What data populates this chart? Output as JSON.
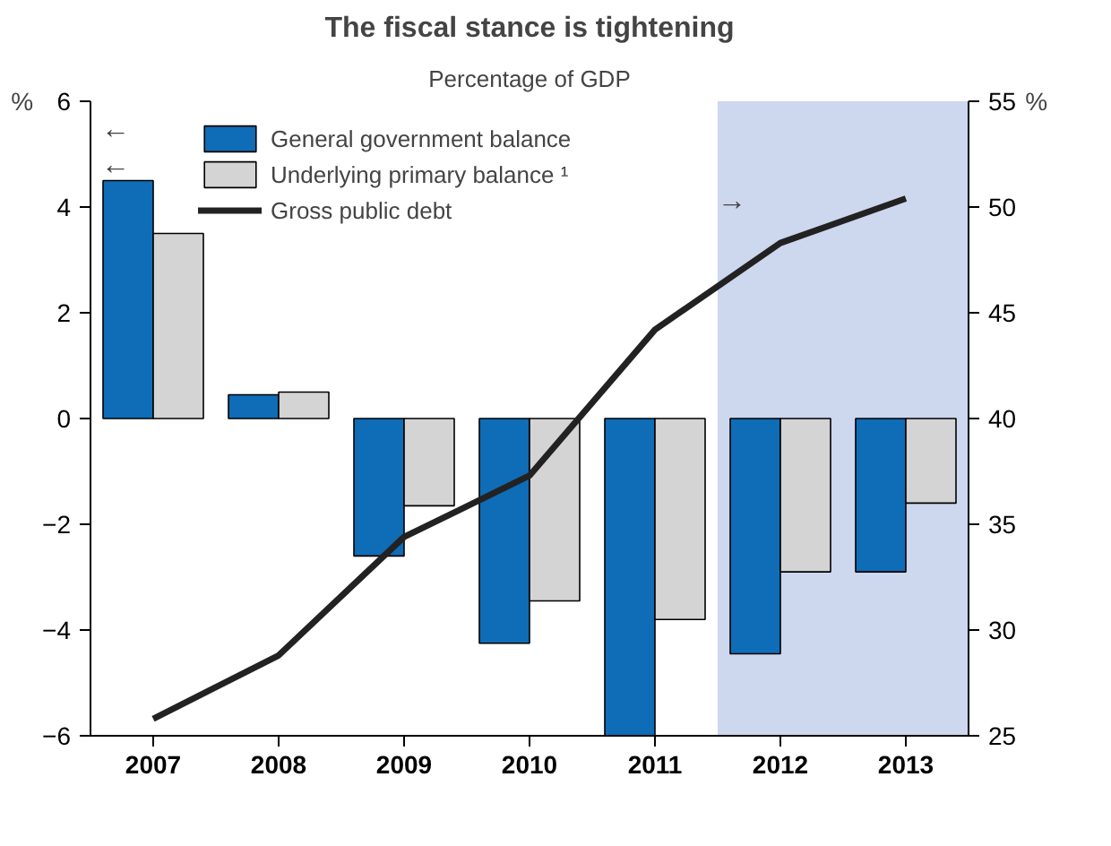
{
  "chart_data": {
    "type": "bar",
    "title": "The fiscal stance is tightening",
    "subtitle": "Percentage of GDP",
    "ylabel": "%",
    "y2label": "%",
    "categories": [
      "2007",
      "2008",
      "2009",
      "2010",
      "2011",
      "2012",
      "2013"
    ],
    "series": [
      {
        "name": "General government balance",
        "color": "#0f6cb6",
        "values": [
          4.5,
          0.45,
          -2.6,
          -4.25,
          -6.0,
          -4.45,
          -2.9
        ]
      },
      {
        "name": "Underlying primary balance ¹",
        "color": "#d4d4d4",
        "values": [
          3.5,
          0.5,
          -1.65,
          -3.45,
          -3.8,
          -2.9,
          -1.6
        ]
      },
      {
        "name": "Gross public debt",
        "type": "line",
        "axis": "y2",
        "color": "#222222",
        "values": [
          25.8,
          28.8,
          34.4,
          37.3,
          44.2,
          48.3,
          50.4
        ]
      }
    ],
    "ylim": [
      -6,
      6
    ],
    "yticks": [
      -6,
      -4,
      -2,
      0,
      2,
      4,
      6
    ],
    "y2lim": [
      25,
      55
    ],
    "y2ticks": [
      25,
      30,
      35,
      40,
      45,
      50,
      55
    ],
    "bands": [
      {
        "axis": "x",
        "from": "2012",
        "to": "2013",
        "color": "#cdd7ee"
      }
    ],
    "annotations": [
      "←",
      "←",
      "→"
    ],
    "grid": false,
    "legend": "top left"
  }
}
